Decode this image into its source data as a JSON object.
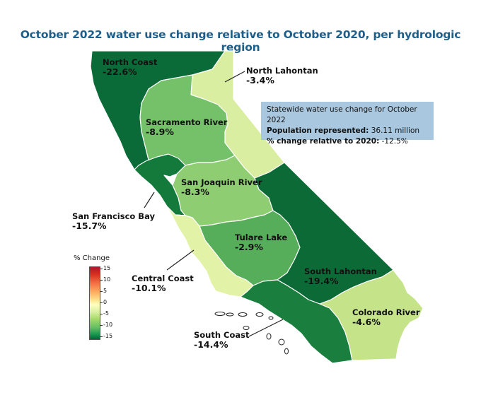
{
  "title": "October 2022 water use change relative to October 2020, per hydrologic region",
  "stats_box": {
    "line1": "Statewide water use change for October 2022",
    "population_label": "Population represented:",
    "population_value": "36.11 million",
    "change_label": "% change relative to 2020:",
    "change_value": "-12.5%"
  },
  "legend": {
    "title": "% Change",
    "ticks": [
      "15",
      "10",
      "5",
      "0",
      "-5",
      "-10",
      "-15"
    ],
    "color_scale": [
      "#b2172b",
      "#f46d43",
      "#fee08b",
      "#ffffbf",
      "#a6d96a",
      "#1a9850",
      "#006837"
    ]
  },
  "regions": [
    {
      "id": "north_coast",
      "name": "North Coast",
      "value": "-22.6%",
      "color": "#0b6b38"
    },
    {
      "id": "north_lahontan",
      "name": "North Lahontan",
      "value": "-3.4%",
      "color": "#d9eea0"
    },
    {
      "id": "sacramento_river",
      "name": "Sacramento River",
      "value": "-8.9%",
      "color": "#74c16a"
    },
    {
      "id": "san_joaquin_river",
      "name": "San Joaquin River",
      "value": "-8.3%",
      "color": "#8fcd73"
    },
    {
      "id": "san_francisco_bay",
      "name": "San Francisco Bay",
      "value": "-15.7%",
      "color": "#137a3c"
    },
    {
      "id": "tulare_lake",
      "name": "Tulare Lake",
      "value": "-2.9%",
      "color": "#e2f2a6"
    },
    {
      "id": "central_coast",
      "name": "Central Coast",
      "value": "-10.1%",
      "color": "#57ae5a"
    },
    {
      "id": "south_lahontan",
      "name": "South Lahontan",
      "value": "-19.4%",
      "color": "#0c6a37"
    },
    {
      "id": "south_coast",
      "name": "South Coast",
      "value": "-14.4%",
      "color": "#1a7f3e"
    },
    {
      "id": "colorado_river",
      "name": "Colorado River",
      "value": "-4.6%",
      "color": "#c5e48a"
    }
  ]
}
